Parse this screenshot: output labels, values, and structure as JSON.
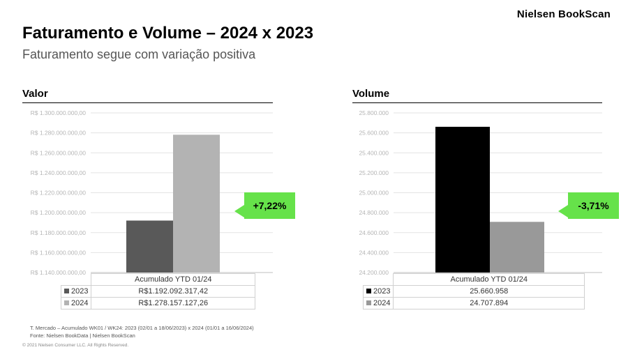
{
  "brand": "Nielsen BookScan",
  "title": "Faturamento e Volume – 2024 x 2023",
  "subtitle": "Faturamento segue com variação positiva",
  "chart_data": [
    {
      "type": "bar",
      "title": "Valor",
      "categories": [
        "Acumulado YTD 01/24"
      ],
      "series": [
        {
          "name": "2023",
          "values": [
            1192092317.42
          ],
          "color": "#595959",
          "label": "R$1.192.092.317,42"
        },
        {
          "name": "2024",
          "values": [
            1278157127.26
          ],
          "color": "#b3b3b3",
          "label": "R$1.278.157.127,26"
        }
      ],
      "ylim": [
        1140000000,
        1300000000
      ],
      "yticks": [
        "R$ 1.140.000.000,00",
        "R$ 1.160.000.000,00",
        "R$ 1.180.000.000,00",
        "R$ 1.200.000.000,00",
        "R$ 1.220.000.000,00",
        "R$ 1.240.000.000,00",
        "R$ 1.260.000.000,00",
        "R$ 1.280.000.000,00",
        "R$ 1.300.000.000,00"
      ],
      "grid": true,
      "legend": "bottom data table",
      "annotation": "+7,22%"
    },
    {
      "type": "bar",
      "title": "Volume",
      "categories": [
        "Acumulado YTD 01/24"
      ],
      "series": [
        {
          "name": "2023",
          "values": [
            25660958
          ],
          "color": "#000000",
          "label": "25.660.958"
        },
        {
          "name": "2024",
          "values": [
            24707894
          ],
          "color": "#999999",
          "label": "24.707.894"
        }
      ],
      "ylim": [
        24200000,
        25800000
      ],
      "yticks": [
        "24.200.000",
        "24.400.000",
        "24.600.000",
        "24.800.000",
        "25.000.000",
        "25.200.000",
        "25.400.000",
        "25.600.000",
        "25.800.000"
      ],
      "grid": true,
      "legend": "bottom data table",
      "annotation": "-3,71%"
    }
  ],
  "accent_color": "#66e24a",
  "footnote_1": "T. Mercado – Acumulado WK01 / WK24: 2023 (02/01 a 18/06/2023) x 2024 (01/01 a 16/06/2024)",
  "footnote_2": "Fonte: Nielsen BookData | Nielsen BookScan",
  "copyright": "© 2021 Nielsen Consumer LLC. All Rights Reserved."
}
